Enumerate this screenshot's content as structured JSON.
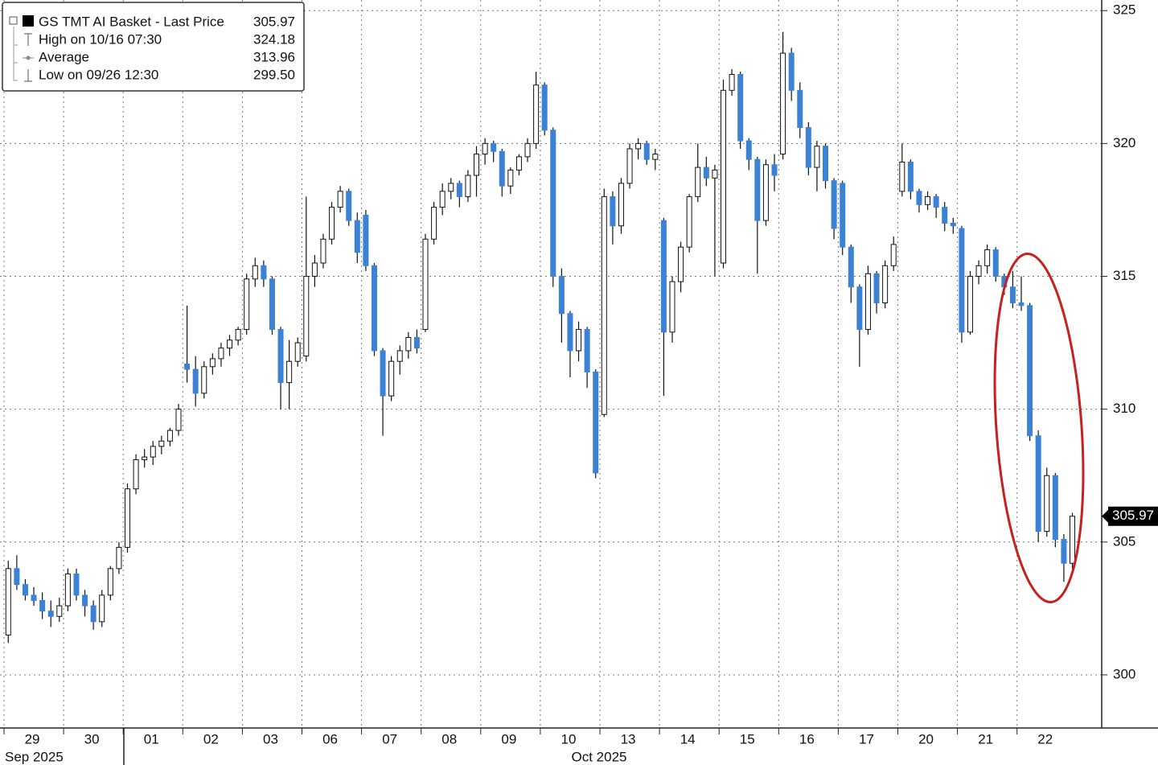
{
  "chart_data": {
    "type": "candlestick",
    "legend": {
      "title": "GS TMT AI Basket - Last Price",
      "last": 305.97,
      "high_label": "High on 10/16 07:30",
      "high": 324.18,
      "avg_label": "Average",
      "avg": 313.96,
      "low_label": "Low on 09/26 12:30",
      "low": {
        "value": 299.5,
        "label": "299.50"
      }
    },
    "categories": [
      "29",
      "30",
      "01",
      "02",
      "03",
      "06",
      "07",
      "08",
      "09",
      "10",
      "13",
      "14",
      "15",
      "16",
      "17",
      "20",
      "21",
      "22"
    ],
    "months": [
      "Sep 2025",
      "Oct 2025"
    ],
    "candles": [
      [
        [
          301.5,
          304.3,
          301.2,
          304.0
        ],
        [
          304.0,
          304.5,
          303.2,
          303.4
        ],
        [
          303.4,
          303.6,
          302.8,
          303.0
        ],
        [
          303.0,
          303.3,
          302.6,
          302.8
        ],
        [
          302.8,
          303.1,
          302.1,
          302.4
        ],
        [
          302.4,
          302.8,
          301.8,
          302.2
        ],
        [
          302.2,
          302.9,
          302.0,
          302.6
        ]
      ],
      [
        [
          302.6,
          304.0,
          302.4,
          303.8
        ],
        [
          303.8,
          304.0,
          302.8,
          303.0
        ],
        [
          303.0,
          303.2,
          302.2,
          302.6
        ],
        [
          302.6,
          302.8,
          301.7,
          302.0
        ],
        [
          302.0,
          303.2,
          301.8,
          303.0
        ],
        [
          303.0,
          304.1,
          302.8,
          304.0
        ],
        [
          304.0,
          305.0,
          303.8,
          304.8
        ]
      ],
      [
        [
          304.8,
          307.2,
          304.6,
          307.0
        ],
        [
          307.0,
          308.3,
          306.8,
          308.1
        ],
        [
          308.1,
          308.5,
          307.8,
          308.2
        ],
        [
          308.2,
          308.8,
          307.9,
          308.6
        ],
        [
          308.6,
          309.0,
          308.3,
          308.8
        ],
        [
          308.8,
          309.3,
          308.6,
          309.2
        ],
        [
          309.2,
          310.2,
          309.0,
          310.0
        ]
      ],
      [
        [
          311.7,
          313.9,
          311.0,
          311.5
        ],
        [
          311.5,
          312.0,
          310.1,
          310.6
        ],
        [
          310.6,
          311.8,
          310.4,
          311.6
        ],
        [
          311.6,
          312.1,
          311.3,
          311.9
        ],
        [
          311.9,
          312.5,
          311.6,
          312.3
        ],
        [
          312.3,
          312.8,
          312.0,
          312.6
        ],
        [
          312.6,
          313.1,
          312.4,
          313.0
        ]
      ],
      [
        [
          313.0,
          315.1,
          312.8,
          314.9
        ],
        [
          314.9,
          315.7,
          314.6,
          315.4
        ],
        [
          315.4,
          315.6,
          314.6,
          314.9
        ],
        [
          314.9,
          315.0,
          312.8,
          313.0
        ],
        [
          313.0,
          313.1,
          310.0,
          311.0
        ],
        [
          311.0,
          312.6,
          310.0,
          311.8
        ],
        [
          311.8,
          312.7,
          311.6,
          312.5
        ]
      ],
      [
        [
          312.0,
          318.0,
          311.8,
          315.0
        ],
        [
          315.0,
          315.8,
          314.6,
          315.5
        ],
        [
          315.5,
          316.6,
          315.3,
          316.4
        ],
        [
          316.4,
          317.8,
          316.2,
          317.6
        ],
        [
          317.6,
          318.4,
          317.4,
          318.2
        ],
        [
          318.2,
          318.3,
          316.9,
          317.1
        ],
        [
          317.1,
          317.4,
          315.5,
          315.9
        ]
      ],
      [
        [
          317.3,
          317.5,
          315.2,
          315.4
        ],
        [
          315.4,
          315.5,
          312.0,
          312.2
        ],
        [
          312.2,
          312.3,
          309.0,
          310.5
        ],
        [
          310.5,
          312.0,
          310.3,
          311.8
        ],
        [
          311.8,
          312.4,
          311.3,
          312.2
        ],
        [
          312.2,
          312.9,
          311.9,
          312.7
        ],
        [
          312.7,
          313.0,
          312.1,
          312.3
        ]
      ],
      [
        [
          313.0,
          316.6,
          312.9,
          316.4
        ],
        [
          316.4,
          317.8,
          316.2,
          317.6
        ],
        [
          317.6,
          318.5,
          317.3,
          318.2
        ],
        [
          318.2,
          318.7,
          317.9,
          318.5
        ],
        [
          318.5,
          318.6,
          317.6,
          318.0
        ],
        [
          318.0,
          319.0,
          317.8,
          318.8
        ],
        [
          318.8,
          319.9,
          318.0,
          319.6
        ]
      ],
      [
        [
          319.6,
          320.2,
          319.2,
          320.0
        ],
        [
          320.0,
          320.1,
          319.3,
          319.7
        ],
        [
          319.7,
          319.8,
          318.0,
          318.4
        ],
        [
          318.4,
          319.1,
          318.1,
          319.0
        ],
        [
          319.0,
          319.6,
          318.8,
          319.5
        ],
        [
          319.5,
          320.2,
          319.3,
          320.0
        ],
        [
          320.0,
          322.7,
          319.8,
          322.2
        ]
      ],
      [
        [
          322.2,
          322.3,
          320.3,
          320.5
        ],
        [
          320.5,
          320.6,
          314.6,
          315.0
        ],
        [
          315.0,
          315.3,
          312.5,
          313.6
        ],
        [
          313.6,
          313.7,
          311.2,
          312.2
        ],
        [
          312.2,
          313.3,
          311.8,
          313.0
        ],
        [
          313.0,
          313.1,
          310.8,
          311.4
        ],
        [
          311.4,
          311.5,
          307.4,
          307.6
        ]
      ],
      [
        [
          309.8,
          318.3,
          309.7,
          318.0
        ],
        [
          318.0,
          318.2,
          316.2,
          316.9
        ],
        [
          316.9,
          318.7,
          316.6,
          318.5
        ],
        [
          318.5,
          320.0,
          318.3,
          319.8
        ],
        [
          319.8,
          320.2,
          319.4,
          320.0
        ],
        [
          320.0,
          320.1,
          319.2,
          319.4
        ],
        [
          319.4,
          319.8,
          319.0,
          319.6
        ]
      ],
      [
        [
          317.1,
          317.2,
          310.5,
          312.9
        ],
        [
          312.9,
          315.0,
          312.5,
          314.8
        ],
        [
          314.8,
          316.3,
          314.4,
          316.1
        ],
        [
          316.1,
          318.1,
          315.9,
          318.0
        ],
        [
          318.0,
          320.0,
          317.8,
          319.1
        ],
        [
          319.1,
          319.5,
          318.4,
          318.7
        ],
        [
          318.7,
          319.2,
          315.0,
          319.0
        ]
      ],
      [
        [
          315.5,
          322.4,
          315.3,
          322.0
        ],
        [
          322.0,
          322.8,
          321.8,
          322.6
        ],
        [
          322.6,
          322.7,
          319.8,
          320.1
        ],
        [
          320.1,
          320.2,
          319.0,
          319.4
        ],
        [
          319.4,
          319.5,
          315.1,
          317.1
        ],
        [
          317.1,
          319.4,
          316.9,
          319.2
        ],
        [
          319.2,
          319.6,
          318.2,
          318.8
        ]
      ],
      [
        [
          319.6,
          324.2,
          319.4,
          323.4
        ],
        [
          323.4,
          323.6,
          321.6,
          322.0
        ],
        [
          322.0,
          322.3,
          320.2,
          320.6
        ],
        [
          320.6,
          320.8,
          318.8,
          319.1
        ],
        [
          319.1,
          320.1,
          318.2,
          319.9
        ],
        [
          319.9,
          320.0,
          318.3,
          318.6
        ],
        [
          318.6,
          318.7,
          316.4,
          316.8
        ]
      ],
      [
        [
          318.5,
          318.6,
          315.8,
          316.1
        ],
        [
          316.1,
          316.2,
          314.0,
          314.6
        ],
        [
          314.6,
          314.7,
          311.6,
          313.0
        ],
        [
          313.0,
          315.4,
          312.8,
          315.1
        ],
        [
          315.1,
          315.2,
          313.6,
          314.0
        ],
        [
          314.0,
          315.6,
          313.8,
          315.4
        ],
        [
          315.4,
          316.5,
          315.2,
          316.2
        ]
      ],
      [
        [
          318.2,
          320.0,
          318.0,
          319.3
        ],
        [
          319.3,
          319.4,
          317.9,
          318.2
        ],
        [
          318.2,
          318.3,
          317.4,
          317.7
        ],
        [
          317.7,
          318.2,
          317.5,
          318.0
        ],
        [
          318.0,
          318.1,
          317.2,
          317.6
        ],
        [
          317.6,
          317.8,
          316.7,
          317.0
        ],
        [
          317.0,
          317.2,
          316.6,
          316.9
        ]
      ],
      [
        [
          316.8,
          316.9,
          312.5,
          312.9
        ],
        [
          312.9,
          315.2,
          312.8,
          315.0
        ],
        [
          315.0,
          315.6,
          314.7,
          315.4
        ],
        [
          315.4,
          316.2,
          315.1,
          316.0
        ],
        [
          316.0,
          316.1,
          314.8,
          315.0
        ],
        [
          315.0,
          315.1,
          314.3,
          314.6
        ],
        [
          314.6,
          315.2,
          313.8,
          314.0
        ]
      ],
      [
        [
          314.0,
          315.0,
          313.7,
          313.9
        ],
        [
          313.9,
          314.0,
          308.8,
          309.0
        ],
        [
          309.0,
          309.2,
          305.0,
          305.4
        ],
        [
          305.4,
          307.8,
          305.2,
          307.5
        ],
        [
          307.5,
          307.6,
          304.8,
          305.1
        ],
        [
          305.1,
          305.3,
          303.5,
          304.2
        ],
        [
          304.2,
          306.1,
          304.0,
          305.97
        ]
      ]
    ],
    "ylim": [
      298,
      325.4
    ],
    "yticks": [
      300,
      305,
      310,
      315,
      320,
      325
    ],
    "up_color": "#ffffff",
    "down_color": "#3b82d6",
    "grid": true
  }
}
